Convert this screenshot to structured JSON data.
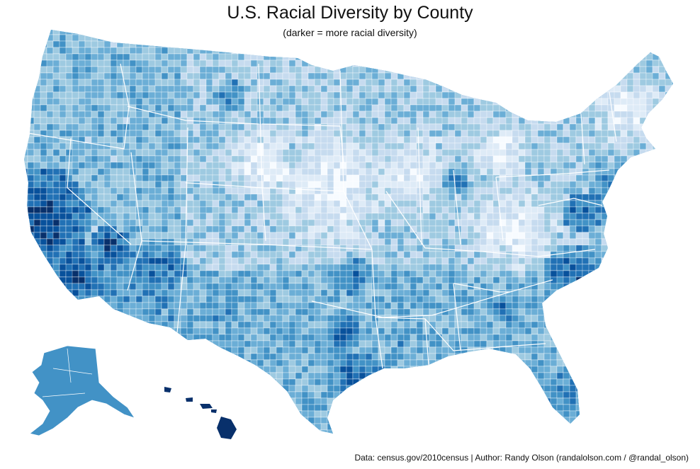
{
  "title": "U.S. Racial Diversity by County",
  "subtitle": "(darker = more racial diversity)",
  "credit": "Data: census.gov/2010census | Author: Randy Olson (randalolson.com / @randal_olson)",
  "map": {
    "type": "choropleth",
    "geography": "U.S. counties",
    "color_ramp": [
      "#f7fbff",
      "#deebf7",
      "#c6dbef",
      "#9ecae1",
      "#6baed6",
      "#4292c6",
      "#2171b5",
      "#08519c",
      "#08306b"
    ],
    "border_color": "#ffffff",
    "regions": [
      {
        "name": "contiguous-us",
        "level": 0.45
      },
      {
        "name": "alaska",
        "level": 0.6
      },
      {
        "name": "hawaii",
        "level": 0.95
      }
    ]
  }
}
